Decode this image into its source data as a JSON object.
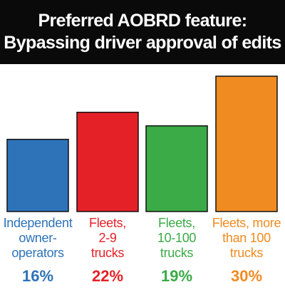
{
  "chart_data": {
    "type": "bar",
    "title_lines": [
      "Preferred AOBRD feature:",
      "Bypassing driver approval of edits"
    ],
    "categories": [
      [
        "Independent",
        "owner-",
        "operators"
      ],
      [
        "Fleets,",
        "2-9",
        "trucks"
      ],
      [
        "Fleets,",
        "10-100",
        "trucks"
      ],
      [
        "Fleets, more",
        "than 100",
        "trucks"
      ]
    ],
    "values": [
      16,
      22,
      19,
      30
    ],
    "value_labels": [
      "16%",
      "22%",
      "19%",
      "30%"
    ],
    "colors": [
      "#2e73b8",
      "#e52128",
      "#3aab47",
      "#f08b22"
    ],
    "ylim": [
      0,
      30
    ],
    "grid": false,
    "legend": "none"
  }
}
